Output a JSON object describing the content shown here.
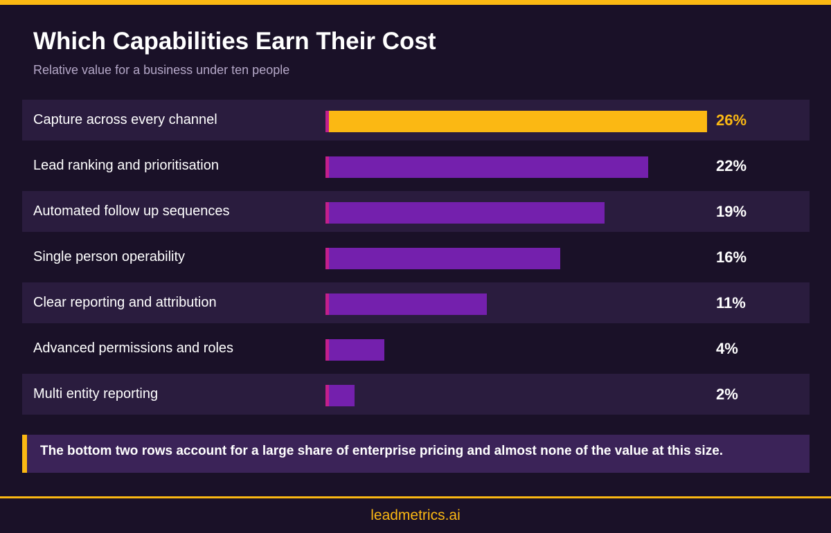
{
  "header": {
    "title": "Which Capabilities Earn Their Cost",
    "subtitle": "Relative value for a business under ten people"
  },
  "chart_data": {
    "type": "bar",
    "orientation": "horizontal",
    "categories": [
      "Capture across every channel",
      "Lead ranking and prioritisation",
      "Automated follow up sequences",
      "Single person operability",
      "Clear reporting and attribution",
      "Advanced permissions and roles",
      "Multi entity reporting"
    ],
    "values": [
      26,
      22,
      19,
      16,
      11,
      4,
      2
    ],
    "value_labels": [
      "26%",
      "22%",
      "19%",
      "16%",
      "11%",
      "4%",
      "2%"
    ],
    "unit": "%",
    "highlight_index": 0,
    "grid": false,
    "colors": {
      "bar": "#7420ad",
      "highlight": "#fbb813",
      "bar_cap": "#c21f8c"
    }
  },
  "callout": {
    "text": "The bottom two rows account for a large share of enterprise pricing and almost none of the value at this size."
  },
  "footer": {
    "brand": "leadmetrics.ai"
  },
  "theme": {
    "background": "#1a1128",
    "row_alt": "#2a1c3e",
    "accent": "#fbb813"
  }
}
